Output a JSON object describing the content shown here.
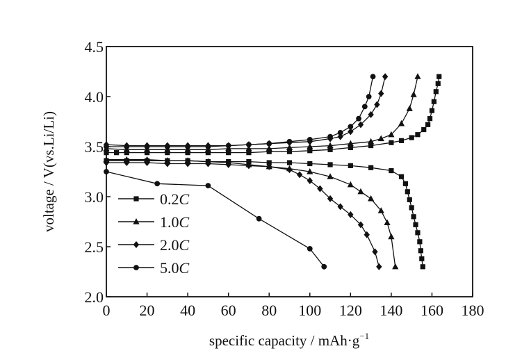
{
  "chart_data": {
    "type": "line",
    "xlabel": "specific capacity / mAh·g",
    "xlabel_sup": "−1",
    "ylabel": "voltage / V(vs.Li/Li)",
    "xlim": [
      0,
      180
    ],
    "ylim": [
      2.0,
      4.5
    ],
    "x_ticks": [
      "0",
      "20",
      "40",
      "60",
      "80",
      "100",
      "120",
      "140",
      "160",
      "180"
    ],
    "y_ticks": [
      "2.0",
      "2.5",
      "3.0",
      "3.5",
      "4.0",
      "4.5"
    ],
    "grid": false,
    "legend_position": "lower-left",
    "series": [
      {
        "name": "0.2C",
        "rate": "0.2",
        "unit": "C",
        "marker": "square",
        "charge": [
          [
            0,
            3.44
          ],
          [
            5,
            3.44
          ],
          [
            10,
            3.44
          ],
          [
            20,
            3.44
          ],
          [
            30,
            3.44
          ],
          [
            40,
            3.44
          ],
          [
            50,
            3.44
          ],
          [
            60,
            3.44
          ],
          [
            70,
            3.44
          ],
          [
            80,
            3.45
          ],
          [
            90,
            3.45
          ],
          [
            100,
            3.46
          ],
          [
            110,
            3.47
          ],
          [
            120,
            3.49
          ],
          [
            130,
            3.51
          ],
          [
            140,
            3.54
          ],
          [
            145,
            3.56
          ],
          [
            150,
            3.59
          ],
          [
            153,
            3.62
          ],
          [
            156,
            3.67
          ],
          [
            158,
            3.72
          ],
          [
            159,
            3.78
          ],
          [
            160,
            3.86
          ],
          [
            161,
            3.95
          ],
          [
            162,
            4.05
          ],
          [
            163,
            4.13
          ],
          [
            163.5,
            4.2
          ]
        ],
        "discharge": [
          [
            0,
            3.36
          ],
          [
            10,
            3.36
          ],
          [
            20,
            3.36
          ],
          [
            30,
            3.36
          ],
          [
            40,
            3.36
          ],
          [
            50,
            3.35
          ],
          [
            60,
            3.35
          ],
          [
            70,
            3.35
          ],
          [
            80,
            3.34
          ],
          [
            90,
            3.34
          ],
          [
            100,
            3.33
          ],
          [
            110,
            3.32
          ],
          [
            120,
            3.31
          ],
          [
            130,
            3.29
          ],
          [
            140,
            3.26
          ],
          [
            145,
            3.2
          ],
          [
            147,
            3.13
          ],
          [
            148,
            3.05
          ],
          [
            149,
            2.97
          ],
          [
            150,
            2.89
          ],
          [
            151,
            2.8
          ],
          [
            152,
            2.72
          ],
          [
            153,
            2.64
          ],
          [
            154,
            2.55
          ],
          [
            154.5,
            2.46
          ],
          [
            155,
            2.38
          ],
          [
            155.5,
            2.3
          ]
        ]
      },
      {
        "name": "1.0C",
        "rate": "1.0",
        "unit": "C",
        "marker": "triangle",
        "charge": [
          [
            0,
            3.48
          ],
          [
            10,
            3.47
          ],
          [
            20,
            3.47
          ],
          [
            30,
            3.47
          ],
          [
            40,
            3.47
          ],
          [
            50,
            3.47
          ],
          [
            60,
            3.48
          ],
          [
            70,
            3.48
          ],
          [
            80,
            3.48
          ],
          [
            90,
            3.49
          ],
          [
            100,
            3.5
          ],
          [
            110,
            3.51
          ],
          [
            120,
            3.53
          ],
          [
            130,
            3.55
          ],
          [
            135,
            3.58
          ],
          [
            140,
            3.62
          ],
          [
            145,
            3.73
          ],
          [
            149,
            3.88
          ],
          [
            151,
            4.02
          ],
          [
            153,
            4.2
          ]
        ],
        "discharge": [
          [
            0,
            3.37
          ],
          [
            10,
            3.37
          ],
          [
            20,
            3.37
          ],
          [
            30,
            3.36
          ],
          [
            40,
            3.36
          ],
          [
            50,
            3.35
          ],
          [
            60,
            3.34
          ],
          [
            70,
            3.32
          ],
          [
            80,
            3.3
          ],
          [
            90,
            3.28
          ],
          [
            100,
            3.25
          ],
          [
            110,
            3.2
          ],
          [
            120,
            3.12
          ],
          [
            125,
            3.05
          ],
          [
            130,
            2.98
          ],
          [
            135,
            2.86
          ],
          [
            138,
            2.74
          ],
          [
            140,
            2.6
          ],
          [
            142,
            2.3
          ]
        ]
      },
      {
        "name": "2.0C",
        "rate": "2.0",
        "unit": "C",
        "marker": "diamond",
        "charge": [
          [
            0,
            3.52
          ],
          [
            10,
            3.51
          ],
          [
            20,
            3.51
          ],
          [
            30,
            3.51
          ],
          [
            40,
            3.51
          ],
          [
            50,
            3.51
          ],
          [
            60,
            3.51
          ],
          [
            70,
            3.52
          ],
          [
            80,
            3.53
          ],
          [
            90,
            3.54
          ],
          [
            100,
            3.55
          ],
          [
            110,
            3.58
          ],
          [
            115,
            3.6
          ],
          [
            120,
            3.65
          ],
          [
            125,
            3.72
          ],
          [
            130,
            3.82
          ],
          [
            133,
            3.92
          ],
          [
            135,
            4.03
          ],
          [
            137,
            4.2
          ]
        ],
        "discharge": [
          [
            0,
            3.34
          ],
          [
            10,
            3.34
          ],
          [
            20,
            3.34
          ],
          [
            30,
            3.33
          ],
          [
            40,
            3.33
          ],
          [
            50,
            3.33
          ],
          [
            60,
            3.32
          ],
          [
            70,
            3.31
          ],
          [
            80,
            3.3
          ],
          [
            90,
            3.27
          ],
          [
            95,
            3.22
          ],
          [
            100,
            3.16
          ],
          [
            105,
            3.08
          ],
          [
            110,
            2.98
          ],
          [
            115,
            2.9
          ],
          [
            120,
            2.82
          ],
          [
            125,
            2.72
          ],
          [
            128,
            2.62
          ],
          [
            132,
            2.45
          ],
          [
            134,
            2.3
          ]
        ]
      },
      {
        "name": "5.0C",
        "rate": "5.0",
        "unit": "C",
        "marker": "circle",
        "charge": [
          [
            0,
            3.5
          ],
          [
            10,
            3.5
          ],
          [
            20,
            3.5
          ],
          [
            30,
            3.5
          ],
          [
            40,
            3.5
          ],
          [
            50,
            3.5
          ],
          [
            60,
            3.51
          ],
          [
            70,
            3.52
          ],
          [
            80,
            3.53
          ],
          [
            90,
            3.55
          ],
          [
            100,
            3.57
          ],
          [
            110,
            3.6
          ],
          [
            115,
            3.64
          ],
          [
            120,
            3.7
          ],
          [
            124,
            3.78
          ],
          [
            127,
            3.9
          ],
          [
            129,
            4.0
          ],
          [
            131,
            4.2
          ]
        ],
        "discharge": [
          [
            0,
            3.25
          ],
          [
            25,
            3.13
          ],
          [
            50,
            3.11
          ],
          [
            75,
            2.78
          ],
          [
            100,
            2.48
          ],
          [
            107,
            2.3
          ]
        ]
      }
    ]
  }
}
